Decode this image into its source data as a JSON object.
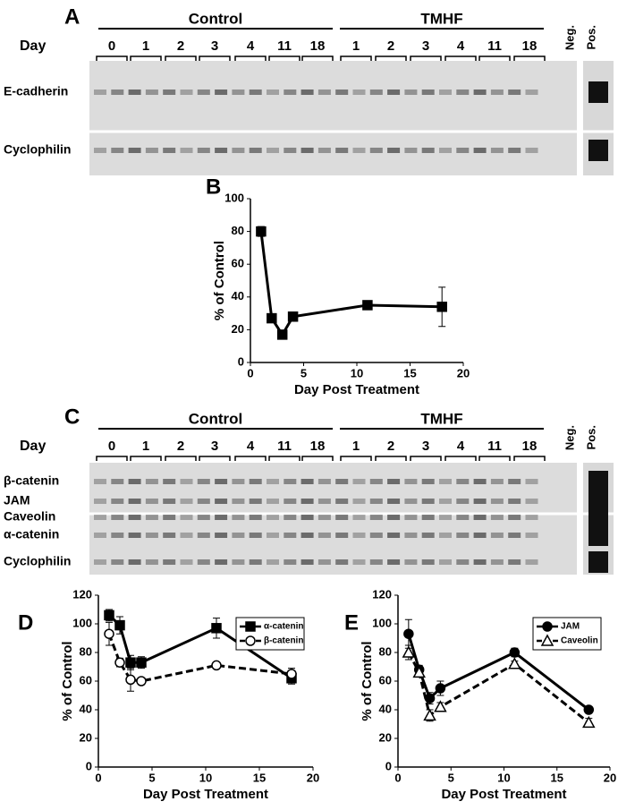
{
  "gel_a": {
    "letter": "A",
    "groups": [
      "Control",
      "TMHF"
    ],
    "day_label": "Day",
    "days": [
      "0",
      "1",
      "2",
      "3",
      "4",
      "11",
      "18",
      "1",
      "2",
      "3",
      "4",
      "11",
      "18"
    ],
    "controls": [
      "Neg.",
      "Pos."
    ],
    "rows": [
      "E-cadherin",
      "Cyclophilin"
    ]
  },
  "gel_c": {
    "letter": "C",
    "groups": [
      "Control",
      "TMHF"
    ],
    "day_label": "Day",
    "days": [
      "0",
      "1",
      "2",
      "3",
      "4",
      "11",
      "18",
      "1",
      "2",
      "3",
      "4",
      "11",
      "18"
    ],
    "controls": [
      "Neg.",
      "Pos."
    ],
    "rows": [
      "β-catenin",
      "JAM",
      "Caveolin",
      "α-catenin",
      "Cyclophilin"
    ]
  },
  "chart_data": [
    {
      "type": "line",
      "panel": "B",
      "x": [
        1,
        2,
        3,
        4,
        11,
        18
      ],
      "values": [
        80,
        27,
        17,
        28,
        35,
        34
      ],
      "errors": [
        3,
        2,
        1,
        0,
        2,
        12
      ],
      "marker": "square",
      "filled": true,
      "dashed": false,
      "color": "#000000",
      "xlim": [
        0,
        20
      ],
      "xticks": [
        0,
        5,
        10,
        15,
        20
      ],
      "ylim": [
        0,
        100
      ],
      "yticks": [
        0,
        20,
        40,
        60,
        80,
        100
      ],
      "xlabel": "Day Post Treatment",
      "ylabel": "% of Control"
    },
    {
      "type": "line",
      "panel": "D",
      "x": [
        1,
        2,
        3,
        4,
        11,
        18
      ],
      "series": [
        {
          "name": "α-catenin",
          "color": "#000000",
          "marker": "square",
          "filled": true,
          "dashed": false,
          "values": [
            106,
            99,
            73,
            73,
            97,
            62
          ],
          "errors": [
            4,
            6,
            5,
            4,
            7,
            4
          ]
        },
        {
          "name": "β-catenin",
          "color": "#000000",
          "marker": "circle",
          "filled": false,
          "dashed": true,
          "values": [
            93,
            73,
            61,
            60,
            71,
            65
          ],
          "errors": [
            8,
            3,
            8,
            2,
            2,
            4
          ]
        }
      ],
      "legend": "upper right",
      "xlim": [
        0,
        20
      ],
      "xticks": [
        0,
        5,
        10,
        15,
        20
      ],
      "ylim": [
        0,
        120
      ],
      "yticks": [
        0,
        20,
        40,
        60,
        80,
        100,
        120
      ],
      "xlabel": "Day Post Treatment",
      "ylabel": "% of Control"
    },
    {
      "type": "line",
      "panel": "E",
      "x": [
        1,
        2,
        3,
        4,
        11,
        18
      ],
      "series": [
        {
          "name": "JAM",
          "color": "#000000",
          "marker": "circle",
          "filled": true,
          "dashed": false,
          "values": [
            93,
            68,
            48,
            55,
            80,
            40
          ],
          "errors": [
            10,
            3,
            4,
            5,
            3,
            2
          ]
        },
        {
          "name": "Caveolin",
          "color": "#000000",
          "marker": "triangle",
          "filled": false,
          "dashed": true,
          "values": [
            80,
            66,
            36,
            42,
            72,
            31
          ],
          "errors": [
            5,
            3,
            4,
            3,
            2,
            3
          ]
        }
      ],
      "legend": "upper right",
      "xlim": [
        0,
        20
      ],
      "xticks": [
        0,
        5,
        10,
        15,
        20
      ],
      "ylim": [
        0,
        120
      ],
      "yticks": [
        0,
        20,
        40,
        60,
        80,
        100,
        120
      ],
      "xlabel": "Day Post Treatment",
      "ylabel": "% of Control"
    }
  ]
}
